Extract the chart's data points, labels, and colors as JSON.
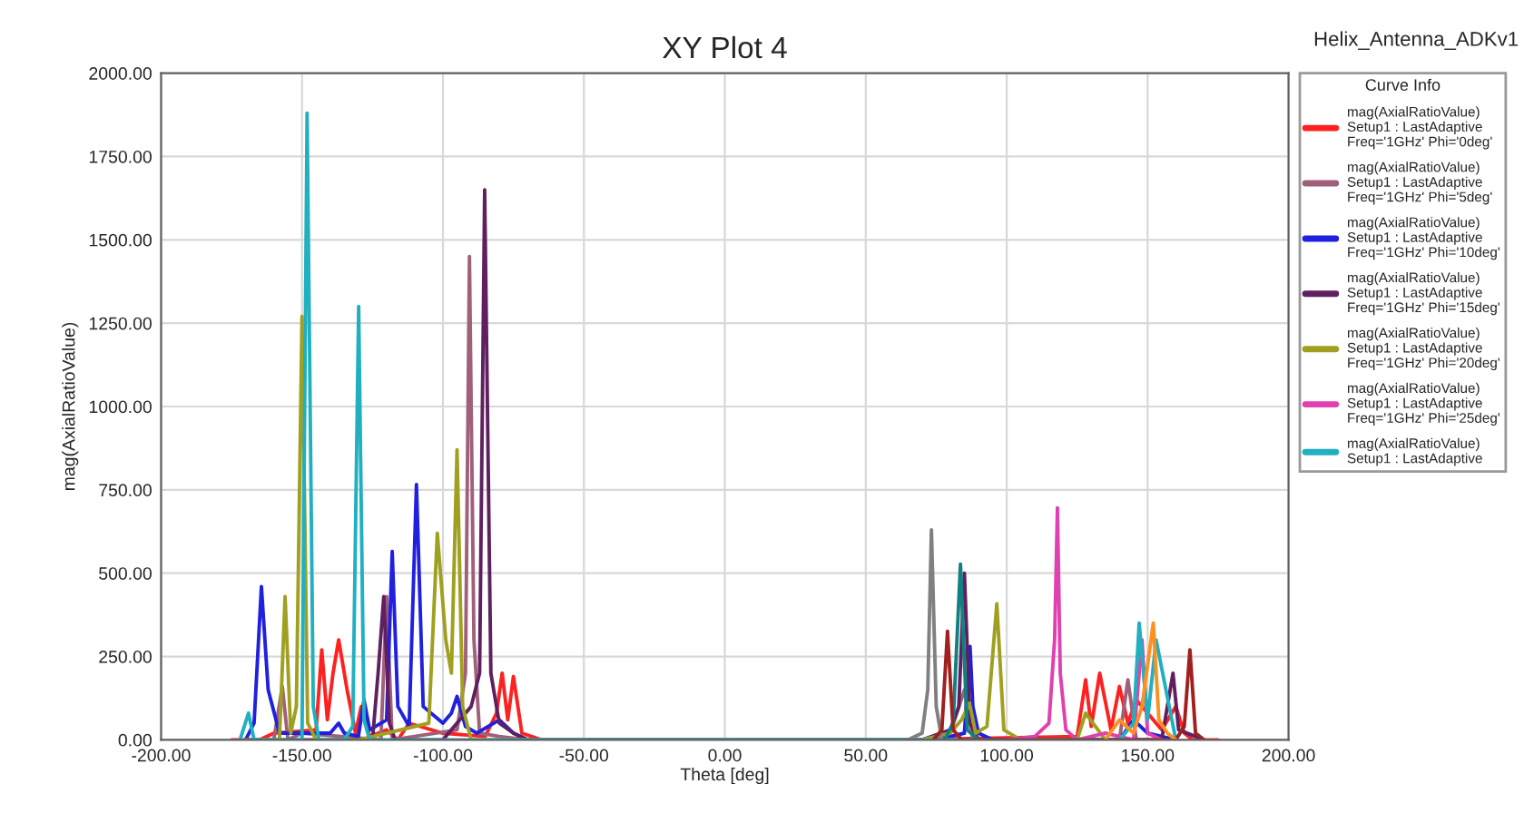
{
  "chart_data": {
    "type": "line",
    "title": "XY Plot 4",
    "xlabel": "Theta [deg]",
    "ylabel": "mag(AxialRatioValue)",
    "legend_title": "Curve Info",
    "annotations": [
      "Helix_Antenna_ADKv1"
    ],
    "xlim": [
      -200,
      200
    ],
    "ylim": [
      0,
      2000
    ],
    "xticks": [
      {
        "value": -200,
        "label": "-200.00"
      },
      {
        "value": -150,
        "label": "-150.00"
      },
      {
        "value": -100,
        "label": "-100.00"
      },
      {
        "value": -50,
        "label": "-50.00"
      },
      {
        "value": 0,
        "label": "0.00"
      },
      {
        "value": 50,
        "label": "50.00"
      },
      {
        "value": 100,
        "label": "100.00"
      },
      {
        "value": 150,
        "label": "150.00"
      },
      {
        "value": 200,
        "label": "200.00"
      }
    ],
    "yticks": [
      {
        "value": 0,
        "label": "0.00"
      },
      {
        "value": 250,
        "label": "250.00"
      },
      {
        "value": 500,
        "label": "500.00"
      },
      {
        "value": 750,
        "label": "750.00"
      },
      {
        "value": 1000,
        "label": "1000.00"
      },
      {
        "value": 1250,
        "label": "1250.00"
      },
      {
        "value": 1500,
        "label": "1500.00"
      },
      {
        "value": 1750,
        "label": "1750.00"
      },
      {
        "value": 2000,
        "label": "2000.00"
      }
    ],
    "grid": true,
    "legend": "right",
    "marker": "none",
    "line_style": "solid",
    "series": [
      {
        "name": "mag(AxialRatioValue)\nSetup1 : LastAdaptive\nFreq='1GHz' Phi='0deg'",
        "color": "#ff2020",
        "x": [
          -175,
          -165,
          -160,
          -145,
          -143,
          -141,
          -139,
          -137,
          -134,
          -131,
          -129,
          -126,
          -120,
          -116,
          -112,
          -100,
          -85,
          -81,
          -79,
          -77,
          -75,
          -72,
          -65,
          -55,
          55,
          65,
          125,
          128,
          130,
          133,
          137,
          140,
          143,
          146,
          150,
          155,
          160,
          163,
          166,
          175
        ],
        "values": [
          0,
          0,
          20,
          30,
          270,
          60,
          200,
          300,
          150,
          20,
          100,
          10,
          30,
          0,
          50,
          20,
          10,
          80,
          200,
          60,
          190,
          20,
          0,
          0,
          0,
          0,
          10,
          180,
          40,
          200,
          30,
          160,
          50,
          120,
          80,
          30,
          100,
          20,
          0,
          0
        ]
      },
      {
        "name": "mag(AxialRatioValue)\nSetup1 : LastAdaptive\nFreq='1GHz' Phi='5deg'",
        "color": "#a0607a",
        "x": [
          -170,
          -160,
          -157,
          -155,
          -150,
          -122,
          -120,
          -118,
          -95,
          -92,
          -90.6,
          -89,
          -87,
          -80,
          -70,
          70,
          80,
          85,
          88,
          90,
          140,
          143,
          146,
          160
        ],
        "values": [
          0,
          0,
          160,
          0,
          20,
          0,
          430,
          0,
          30,
          200,
          1450,
          300,
          20,
          10,
          0,
          0,
          20,
          150,
          0,
          0,
          0,
          180,
          0,
          0
        ]
      },
      {
        "name": "mag(AxialRatioValue)\nSetup1 : LastAdaptive\nFreq='1GHz' Phi='10deg'",
        "color": "#2020e0",
        "x": [
          -170,
          -167,
          -164.4,
          -162,
          -158,
          -140,
          -137,
          -135,
          -130,
          -128,
          -126,
          -120,
          -118,
          -116,
          -112,
          -109.4,
          -107,
          -100,
          -97,
          -95,
          -92,
          -88,
          -80,
          -75,
          -70,
          75,
          85,
          87,
          88,
          90,
          95,
          140,
          145,
          150,
          160
        ],
        "values": [
          0,
          50,
          460,
          150,
          20,
          20,
          50,
          20,
          10,
          120,
          30,
          60,
          565,
          100,
          40,
          766,
          100,
          50,
          80,
          130,
          40,
          20,
          60,
          20,
          0,
          0,
          20,
          280,
          100,
          20,
          0,
          0,
          60,
          20,
          0
        ]
      },
      {
        "name": "mag(AxialRatioValue)\nSetup1 : LastAdaptive\nFreq='1GHz' Phi='15deg'",
        "color": "#602060",
        "x": [
          -170,
          -125,
          -123,
          -121,
          -119,
          -117,
          -100,
          -90,
          -87,
          -85.2,
          -83,
          -80,
          -75,
          -70,
          70,
          80,
          83,
          85,
          87,
          90,
          120,
          155,
          157,
          159,
          161,
          170
        ],
        "values": [
          0,
          0,
          200,
          430,
          50,
          0,
          0,
          100,
          200,
          1650,
          200,
          50,
          20,
          0,
          0,
          30,
          100,
          500,
          50,
          0,
          0,
          0,
          100,
          200,
          30,
          0
        ]
      },
      {
        "name": "mag(AxialRatioValue)\nSetup1 : LastAdaptive\nFreq='1GHz' Phi='20deg'",
        "color": "#a0a020",
        "x": [
          -170,
          -158,
          -156,
          -154,
          -152,
          -150,
          -148,
          -145,
          -130,
          -105,
          -102,
          -99,
          -97,
          -95,
          -93,
          -90,
          -70,
          70,
          80,
          84,
          86.8,
          89,
          93,
          96.5,
          99,
          105,
          120,
          125,
          128,
          135
        ],
        "values": [
          0,
          0,
          430,
          20,
          100,
          1270,
          50,
          0,
          0,
          50,
          620,
          300,
          200,
          870,
          100,
          0,
          0,
          0,
          20,
          60,
          110,
          20,
          40,
          408,
          30,
          0,
          0,
          0,
          80,
          0
        ]
      },
      {
        "name": "mag(AxialRatioValue)\nSetup1 : LastAdaptive\nFreq='1GHz' Phi='25deg'",
        "color": "#e040b0",
        "x": [
          100,
          110,
          115,
          117,
          118,
          119,
          121,
          125,
          135,
          145,
          148,
          150,
          155
        ],
        "values": [
          0,
          10,
          50,
          300,
          696,
          200,
          30,
          0,
          20,
          0,
          300,
          20,
          0
        ]
      },
      {
        "name": "mag(AxialRatioValue)\nSetup1 : LastAdaptive",
        "color": "#20b0c0",
        "x": [
          -172,
          -169,
          -167,
          -160,
          -150,
          -148.2,
          -146,
          -144,
          -135,
          -132,
          -129.9,
          -128,
          -126,
          -115,
          -100,
          -80,
          -75,
          140,
          145,
          147,
          150,
          153,
          160
        ],
        "values": [
          0,
          80,
          0,
          0,
          0,
          1880,
          100,
          0,
          0,
          40,
          1300,
          60,
          0,
          0,
          0,
          0,
          0,
          0,
          50,
          350,
          60,
          300,
          0
        ]
      },
      {
        "color": "#808080",
        "x": [
          65,
          70,
          72,
          73.3,
          75,
          77,
          85
        ],
        "values": [
          0,
          20,
          150,
          630,
          100,
          0,
          0
        ]
      },
      {
        "color": "#108080",
        "x": [
          78,
          81,
          83.6,
          86,
          90
        ],
        "values": [
          0,
          50,
          527,
          30,
          0
        ]
      },
      {
        "color": "#a02020",
        "x": [
          74,
          77,
          79,
          81,
          84,
          160,
          163,
          165,
          167,
          170
        ],
        "values": [
          0,
          30,
          326,
          30,
          0,
          0,
          40,
          270,
          20,
          0
        ]
      },
      {
        "color": "#ff9020",
        "x": [
          135,
          140,
          145,
          148,
          152,
          154,
          157,
          160
        ],
        "values": [
          0,
          60,
          20,
          100,
          350,
          60,
          20,
          0
        ]
      }
    ]
  }
}
